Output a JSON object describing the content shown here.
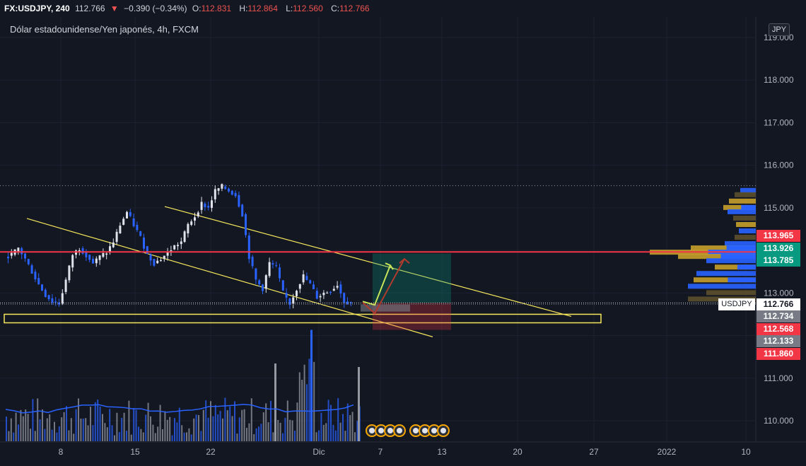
{
  "header": {
    "symbol": "FX:USDJPY, 240",
    "last": "112.766",
    "arrow": "▼",
    "change": "−0.390 (−0.34%)",
    "o_label": "O:",
    "o_value": "112.831",
    "h_label": "H:",
    "h_value": "112.864",
    "l_label": "L:",
    "l_value": "112.560",
    "c_label": "C:",
    "c_value": "112.766"
  },
  "subtitle": "Dólar estadounidense/Yen japonés, 4h, FXCM",
  "currency_badge": "JPY",
  "symbol_tag": "USDJPY",
  "price_labels": [
    {
      "text": "113.965",
      "value": 113.965,
      "color": "#f23645"
    },
    {
      "text": "113.926",
      "value": 113.926,
      "color": "#089981"
    },
    {
      "text": "113.785",
      "value": 113.785,
      "color": "#089981"
    },
    {
      "text": "112.766",
      "value": 112.766,
      "color": "#ffffff"
    },
    {
      "text": "112.734",
      "value": 112.734,
      "color": "#787b86"
    },
    {
      "text": "112.568",
      "value": 112.568,
      "color": "#f23645"
    },
    {
      "text": "112.133",
      "value": 112.133,
      "color": "#787b86"
    },
    {
      "text": "111.860",
      "value": 111.86,
      "color": "#f23645"
    }
  ],
  "chart_data": {
    "type": "candlestick",
    "title": "Dólar estadounidense/Yen japonés, 4h, FXCM",
    "ylim": [
      109.6,
      119.4
    ],
    "y_ticks": [
      "110.000",
      "111.000",
      "112.000",
      "113.000",
      "114.000",
      "115.000",
      "116.000",
      "117.000",
      "118.000",
      "119.000"
    ],
    "x_ticks": [
      "8",
      "15",
      "22",
      "Dic",
      "7",
      "13",
      "20",
      "27",
      "2022",
      "10"
    ],
    "horizontal_line": 113.965,
    "session_high": 115.52,
    "support_zone": [
      112.3,
      112.5
    ],
    "price_path": [
      113.85,
      113.9,
      114.05,
      113.8,
      113.5,
      113.2,
      112.95,
      112.8,
      112.75,
      113.3,
      113.9,
      114.05,
      113.9,
      113.7,
      113.85,
      113.95,
      114.2,
      114.6,
      114.9,
      114.6,
      114.3,
      113.9,
      113.7,
      113.8,
      113.95,
      114.1,
      114.2,
      114.6,
      114.8,
      115.1,
      115.0,
      115.4,
      115.5,
      115.4,
      115.3,
      114.85,
      113.85,
      113.3,
      113.1,
      113.7,
      113.6,
      113.0,
      112.75,
      113.1,
      113.4,
      113.2,
      112.9,
      113.0,
      113.05,
      113.2,
      112.8,
      112.77
    ],
    "position": {
      "entry": 112.766,
      "target": 113.926,
      "stop": 112.133
    },
    "volume_profile_colors": [
      "#2962ff",
      "#c8a02a",
      "#5d4f2e"
    ]
  }
}
